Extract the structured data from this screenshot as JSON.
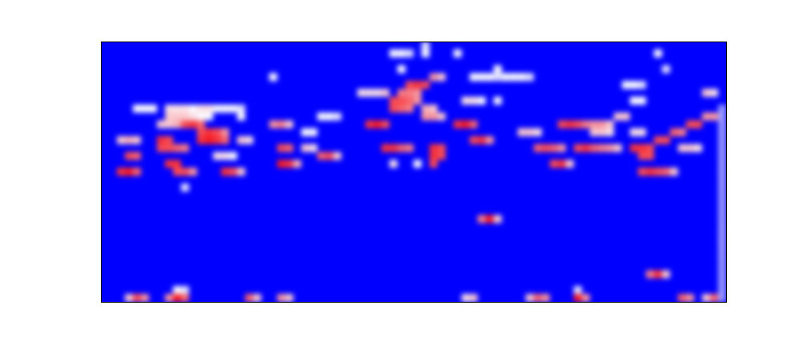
{
  "chart_data": {
    "type": "heatmap",
    "xlim": [
      0,
      78
    ],
    "ylim": [
      0,
      33
    ],
    "xticks": [],
    "yticks": [],
    "tick_labels": false,
    "zlim": [
      0,
      1
    ],
    "colors": [
      "#0000ff",
      "#ffffff",
      "#ff0000"
    ],
    "cells": [
      [
        3,
        0,
        0.6
      ],
      [
        4,
        0,
        0.85
      ],
      [
        5,
        0,
        0.7
      ],
      [
        8,
        0,
        0.7
      ],
      [
        9,
        0,
        0.95
      ],
      [
        10,
        0,
        0.8
      ],
      [
        18,
        0,
        0.8
      ],
      [
        19,
        0,
        0.6
      ],
      [
        22,
        0,
        0.7
      ],
      [
        23,
        0,
        0.6
      ],
      [
        45,
        0,
        0.55
      ],
      [
        46,
        0,
        0.6
      ],
      [
        53,
        0,
        0.6
      ],
      [
        54,
        0,
        0.8
      ],
      [
        55,
        0,
        0.7
      ],
      [
        59,
        0,
        0.95
      ],
      [
        60,
        0,
        0.7
      ],
      [
        72,
        0,
        0.8
      ],
      [
        73,
        0,
        0.7
      ],
      [
        75,
        0,
        0.6
      ],
      [
        76,
        0,
        0.8
      ],
      [
        9,
        1,
        0.5
      ],
      [
        10,
        1,
        0.45
      ],
      [
        59,
        1,
        0.45
      ],
      [
        68,
        3,
        0.75
      ],
      [
        69,
        3,
        0.9
      ],
      [
        70,
        3,
        0.6
      ],
      [
        47,
        10,
        0.75
      ],
      [
        48,
        10,
        0.95
      ],
      [
        49,
        10,
        0.6
      ],
      [
        10,
        14,
        0.45
      ],
      [
        2,
        16,
        0.9
      ],
      [
        3,
        16,
        0.95
      ],
      [
        4,
        16,
        0.8
      ],
      [
        9,
        16,
        0.85
      ],
      [
        10,
        16,
        0.85
      ],
      [
        11,
        16,
        0.7
      ],
      [
        15,
        16,
        0.9
      ],
      [
        16,
        16,
        0.85
      ],
      [
        17,
        16,
        0.6
      ],
      [
        67,
        16,
        0.85
      ],
      [
        68,
        16,
        0.9
      ],
      [
        69,
        16,
        0.85
      ],
      [
        70,
        16,
        0.8
      ],
      [
        71,
        16,
        0.6
      ],
      [
        8,
        17,
        0.9
      ],
      [
        9,
        17,
        0.9
      ],
      [
        22,
        17,
        0.95
      ],
      [
        23,
        17,
        0.9
      ],
      [
        24,
        17,
        0.65
      ],
      [
        36,
        17,
        0.55
      ],
      [
        39,
        17,
        0.5
      ],
      [
        41,
        17,
        0.85
      ],
      [
        56,
        17,
        0.85
      ],
      [
        57,
        17,
        0.9
      ],
      [
        58,
        17,
        0.6
      ],
      [
        3,
        18,
        0.85
      ],
      [
        4,
        18,
        0.8
      ],
      [
        14,
        18,
        0.55
      ],
      [
        15,
        18,
        0.55
      ],
      [
        16,
        18,
        0.5
      ],
      [
        27,
        18,
        0.8
      ],
      [
        28,
        18,
        0.85
      ],
      [
        29,
        18,
        0.6
      ],
      [
        41,
        18,
        0.9
      ],
      [
        42,
        18,
        0.85
      ],
      [
        67,
        18,
        0.85
      ],
      [
        68,
        18,
        0.85
      ],
      [
        7,
        19,
        0.85
      ],
      [
        8,
        19,
        0.85
      ],
      [
        9,
        19,
        0.8
      ],
      [
        10,
        19,
        0.75
      ],
      [
        22,
        19,
        0.85
      ],
      [
        23,
        19,
        0.8
      ],
      [
        25,
        19,
        0.6
      ],
      [
        26,
        19,
        0.55
      ],
      [
        35,
        19,
        0.9
      ],
      [
        36,
        19,
        0.9
      ],
      [
        37,
        19,
        0.8
      ],
      [
        38,
        19,
        0.75
      ],
      [
        41,
        19,
        0.9
      ],
      [
        42,
        19,
        0.85
      ],
      [
        54,
        19,
        0.8
      ],
      [
        55,
        19,
        0.85
      ],
      [
        56,
        19,
        0.8
      ],
      [
        57,
        19,
        0.7
      ],
      [
        59,
        19,
        0.85
      ],
      [
        60,
        19,
        0.9
      ],
      [
        61,
        19,
        0.8
      ],
      [
        62,
        19,
        0.75
      ],
      [
        63,
        19,
        0.7
      ],
      [
        64,
        19,
        0.6
      ],
      [
        66,
        19,
        0.9
      ],
      [
        67,
        19,
        0.9
      ],
      [
        68,
        19,
        0.85
      ],
      [
        72,
        19,
        0.6
      ],
      [
        73,
        19,
        0.6
      ],
      [
        74,
        19,
        0.55
      ],
      [
        2,
        20,
        0.6
      ],
      [
        3,
        20,
        0.65
      ],
      [
        4,
        20,
        0.6
      ],
      [
        7,
        20,
        0.9
      ],
      [
        8,
        20,
        0.85
      ],
      [
        12,
        20,
        0.9
      ],
      [
        13,
        20,
        0.95
      ],
      [
        14,
        20,
        0.9
      ],
      [
        15,
        20,
        0.8
      ],
      [
        17,
        20,
        0.6
      ],
      [
        18,
        20,
        0.55
      ],
      [
        46,
        20,
        0.85
      ],
      [
        47,
        20,
        0.9
      ],
      [
        48,
        20,
        0.7
      ],
      [
        69,
        20,
        0.85
      ],
      [
        70,
        20,
        0.85
      ],
      [
        12,
        21,
        0.85
      ],
      [
        13,
        21,
        0.9
      ],
      [
        14,
        21,
        0.85
      ],
      [
        15,
        21,
        0.7
      ],
      [
        25,
        21,
        0.5
      ],
      [
        26,
        21,
        0.5
      ],
      [
        52,
        21,
        0.6
      ],
      [
        53,
        21,
        0.6
      ],
      [
        54,
        21,
        0.55
      ],
      [
        61,
        21,
        0.6
      ],
      [
        62,
        21,
        0.6
      ],
      [
        63,
        21,
        0.55
      ],
      [
        66,
        21,
        0.55
      ],
      [
        67,
        21,
        0.55
      ],
      [
        71,
        21,
        0.8
      ],
      [
        72,
        21,
        0.75
      ],
      [
        7,
        22,
        0.6
      ],
      [
        8,
        22,
        0.6
      ],
      [
        9,
        22,
        0.65
      ],
      [
        10,
        22,
        0.85
      ],
      [
        11,
        22,
        0.9
      ],
      [
        12,
        22,
        0.8
      ],
      [
        21,
        22,
        0.7
      ],
      [
        22,
        22,
        0.75
      ],
      [
        23,
        22,
        0.6
      ],
      [
        33,
        22,
        0.9
      ],
      [
        34,
        22,
        0.95
      ],
      [
        35,
        22,
        0.85
      ],
      [
        44,
        22,
        0.9
      ],
      [
        45,
        22,
        0.95
      ],
      [
        46,
        22,
        0.8
      ],
      [
        57,
        22,
        0.85
      ],
      [
        58,
        22,
        0.9
      ],
      [
        59,
        22,
        0.85
      ],
      [
        60,
        22,
        0.75
      ],
      [
        61,
        22,
        0.7
      ],
      [
        62,
        22,
        0.7
      ],
      [
        63,
        22,
        0.6
      ],
      [
        73,
        22,
        0.85
      ],
      [
        74,
        22,
        0.85
      ],
      [
        8,
        23,
        0.6
      ],
      [
        9,
        23,
        0.6
      ],
      [
        10,
        23,
        0.6
      ],
      [
        11,
        23,
        0.55
      ],
      [
        12,
        23,
        0.5
      ],
      [
        13,
        23,
        0.5
      ],
      [
        17,
        23,
        0.5
      ],
      [
        27,
        23,
        0.5
      ],
      [
        28,
        23,
        0.5
      ],
      [
        29,
        23,
        0.45
      ],
      [
        40,
        23,
        0.7
      ],
      [
        41,
        23,
        0.7
      ],
      [
        42,
        23,
        0.6
      ],
      [
        64,
        23,
        0.6
      ],
      [
        65,
        23,
        0.6
      ],
      [
        75,
        23,
        0.7
      ],
      [
        76,
        23,
        0.7
      ],
      [
        4,
        24,
        0.5
      ],
      [
        5,
        24,
        0.5
      ],
      [
        6,
        24,
        0.5
      ],
      [
        8,
        24,
        0.55
      ],
      [
        9,
        24,
        0.55
      ],
      [
        10,
        24,
        0.55
      ],
      [
        11,
        24,
        0.5
      ],
      [
        12,
        24,
        0.55
      ],
      [
        13,
        24,
        0.55
      ],
      [
        14,
        24,
        0.5
      ],
      [
        15,
        24,
        0.5
      ],
      [
        16,
        24,
        0.5
      ],
      [
        17,
        24,
        0.45
      ],
      [
        36,
        24,
        0.85
      ],
      [
        37,
        24,
        0.8
      ],
      [
        38,
        24,
        0.75
      ],
      [
        40,
        24,
        0.65
      ],
      [
        41,
        24,
        0.6
      ],
      [
        36,
        25,
        0.85
      ],
      [
        37,
        25,
        0.85
      ],
      [
        38,
        25,
        0.8
      ],
      [
        39,
        25,
        0.7
      ],
      [
        45,
        25,
        0.55
      ],
      [
        46,
        25,
        0.55
      ],
      [
        47,
        25,
        0.5
      ],
      [
        49,
        25,
        0.5
      ],
      [
        66,
        25,
        0.5
      ],
      [
        67,
        25,
        0.5
      ],
      [
        32,
        26,
        0.55
      ],
      [
        33,
        26,
        0.55
      ],
      [
        34,
        26,
        0.55
      ],
      [
        35,
        26,
        0.6
      ],
      [
        37,
        26,
        0.75
      ],
      [
        38,
        26,
        0.75
      ],
      [
        39,
        26,
        0.7
      ],
      [
        75,
        26,
        0.6
      ],
      [
        76,
        26,
        0.55
      ],
      [
        38,
        27,
        0.85
      ],
      [
        39,
        27,
        0.9
      ],
      [
        40,
        27,
        0.85
      ],
      [
        65,
        27,
        0.5
      ],
      [
        66,
        27,
        0.5
      ],
      [
        67,
        27,
        0.45
      ],
      [
        21,
        28,
        0.5
      ],
      [
        41,
        28,
        0.7
      ],
      [
        42,
        28,
        0.6
      ],
      [
        46,
        28,
        0.5
      ],
      [
        47,
        28,
        0.5
      ],
      [
        48,
        28,
        0.5
      ],
      [
        49,
        28,
        0.45
      ],
      [
        50,
        28,
        0.5
      ],
      [
        51,
        28,
        0.5
      ],
      [
        52,
        28,
        0.5
      ],
      [
        53,
        28,
        0.45
      ],
      [
        37,
        29,
        0.5
      ],
      [
        49,
        29,
        0.5
      ],
      [
        70,
        29,
        0.45
      ],
      [
        36,
        31,
        0.5
      ],
      [
        37,
        31,
        0.5
      ],
      [
        38,
        31,
        0.45
      ],
      [
        40,
        31,
        0.5
      ],
      [
        44,
        31,
        0.5
      ],
      [
        69,
        31,
        0.5
      ],
      [
        40,
        32,
        0.45
      ],
      [
        77,
        0,
        0.3
      ],
      [
        77,
        1,
        0.3
      ],
      [
        77,
        2,
        0.3
      ],
      [
        77,
        3,
        0.3
      ],
      [
        77,
        4,
        0.3
      ],
      [
        77,
        5,
        0.3
      ],
      [
        77,
        6,
        0.3
      ],
      [
        77,
        7,
        0.3
      ],
      [
        77,
        8,
        0.3
      ],
      [
        77,
        9,
        0.3
      ],
      [
        77,
        10,
        0.3
      ],
      [
        77,
        11,
        0.3
      ],
      [
        77,
        12,
        0.3
      ],
      [
        77,
        13,
        0.3
      ],
      [
        77,
        14,
        0.3
      ],
      [
        77,
        15,
        0.3
      ],
      [
        77,
        16,
        0.3
      ],
      [
        77,
        17,
        0.3
      ],
      [
        77,
        18,
        0.3
      ],
      [
        77,
        19,
        0.3
      ],
      [
        77,
        20,
        0.3
      ],
      [
        77,
        21,
        0.3
      ],
      [
        77,
        22,
        0.3
      ],
      [
        77,
        23,
        0.3
      ],
      [
        77,
        24,
        0.3
      ]
    ]
  }
}
